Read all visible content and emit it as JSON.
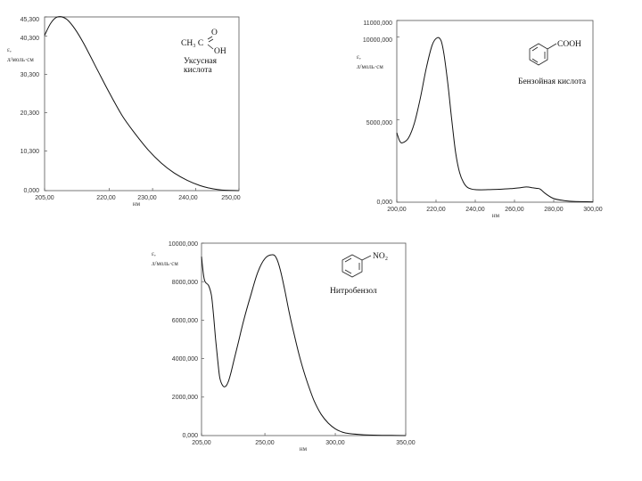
{
  "chart_data": [
    {
      "type": "line",
      "compound": {
        "name_line1": "Уксусная",
        "name_line2": "кислота",
        "formula_left": "CH₃ C",
        "formula_o": "O",
        "formula_oh": "OH"
      },
      "ylabel_symbol": "ε,",
      "ylabel_units": "л/моль·см",
      "xlabel": "нм",
      "xlim": [
        205,
        250
      ],
      "ylim": [
        0,
        45300
      ],
      "x_ticks": [
        205,
        220,
        230,
        240,
        250
      ],
      "x_tick_labels": [
        "205,00",
        "220,00",
        "230,00",
        "240,00",
        "250,00"
      ],
      "y_ticks": [
        0,
        10300,
        20300,
        30300,
        40300,
        45300
      ],
      "y_tick_labels": [
        "0,000",
        "10,300",
        "20,300",
        "30,300",
        "40,300",
        "45,300"
      ],
      "series": [
        {
          "x": [
            205,
            206.5,
            208,
            210,
            212,
            214,
            217,
            220,
            223,
            226,
            229,
            232,
            235,
            238,
            241,
            243,
            245,
            247,
            250
          ],
          "y": [
            40500,
            43800,
            45300,
            44800,
            42200,
            38500,
            32000,
            25500,
            19500,
            14800,
            10600,
            7200,
            4600,
            2700,
            1300,
            700,
            300,
            100,
            0
          ]
        }
      ]
    },
    {
      "type": "line",
      "compound": {
        "name": "Бензойная кислота",
        "group": "COOH"
      },
      "ylabel_symbol": "ε,",
      "ylabel_units": "л/моль·см",
      "xlabel": "нм",
      "xlim": [
        200,
        300
      ],
      "ylim": [
        0,
        11000000
      ],
      "x_ticks": [
        200,
        220,
        240,
        260,
        280,
        300
      ],
      "x_tick_labels": [
        "200,00",
        "220,00",
        "240,00",
        "260,00",
        "280,00",
        "300,00"
      ],
      "y_ticks": [
        0,
        5000000,
        10000000,
        11000000
      ],
      "y_tick_labels": [
        "0,000",
        "5000,000",
        "10000,000",
        "11000,000"
      ],
      "series": [
        {
          "x": [
            200,
            201.5,
            203,
            206,
            209,
            212,
            215,
            218,
            220.5,
            222.5,
            224,
            226,
            228,
            230,
            232,
            234,
            236,
            238,
            240,
            243,
            247,
            252,
            258,
            263,
            266,
            269,
            271,
            273,
            276,
            280,
            285,
            290,
            300
          ],
          "y": [
            4200000,
            3700000,
            3600000,
            3900000,
            4800000,
            6300000,
            8100000,
            9500000,
            9950000,
            9800000,
            9000000,
            7200000,
            5000000,
            3000000,
            1800000,
            1200000,
            900000,
            800000,
            760000,
            750000,
            760000,
            780000,
            820000,
            880000,
            920000,
            880000,
            840000,
            800000,
            500000,
            220000,
            100000,
            50000,
            20000
          ]
        }
      ]
    },
    {
      "type": "line",
      "compound": {
        "name": "Нитробензол",
        "group": "NO₂"
      },
      "ylabel_symbol": "ε,",
      "ylabel_units": "л/моль·см",
      "xlabel": "нм",
      "xlim": [
        205,
        350
      ],
      "ylim": [
        0,
        10000000
      ],
      "x_ticks": [
        205,
        250,
        300,
        350
      ],
      "x_tick_labels": [
        "205,00",
        "250,00",
        "300,00",
        "350,00"
      ],
      "y_ticks": [
        0,
        2000000,
        4000000,
        6000000,
        8000000,
        10000000
      ],
      "y_tick_labels": [
        "0,000",
        "2000,000",
        "4000,000",
        "6000,000",
        "8000,000",
        "10000,000"
      ],
      "series": [
        {
          "x": [
            205,
            207,
            210,
            212,
            213.5,
            215,
            216.5,
            218,
            220,
            222,
            224,
            226,
            228,
            231,
            235,
            240,
            245,
            250,
            255,
            258,
            261,
            264,
            267,
            270,
            275,
            280,
            285,
            290,
            295,
            300,
            305,
            310,
            320,
            330,
            340,
            350
          ],
          "y": [
            9300000,
            8100000,
            7800000,
            7300000,
            6300000,
            5000000,
            3900000,
            3000000,
            2600000,
            2550000,
            2800000,
            3300000,
            3900000,
            4800000,
            6000000,
            7300000,
            8500000,
            9200000,
            9400000,
            9250000,
            8600000,
            7600000,
            6500000,
            5500000,
            4000000,
            2800000,
            1800000,
            1100000,
            650000,
            350000,
            180000,
            100000,
            40000,
            20000,
            8000,
            0
          ]
        }
      ]
    }
  ]
}
